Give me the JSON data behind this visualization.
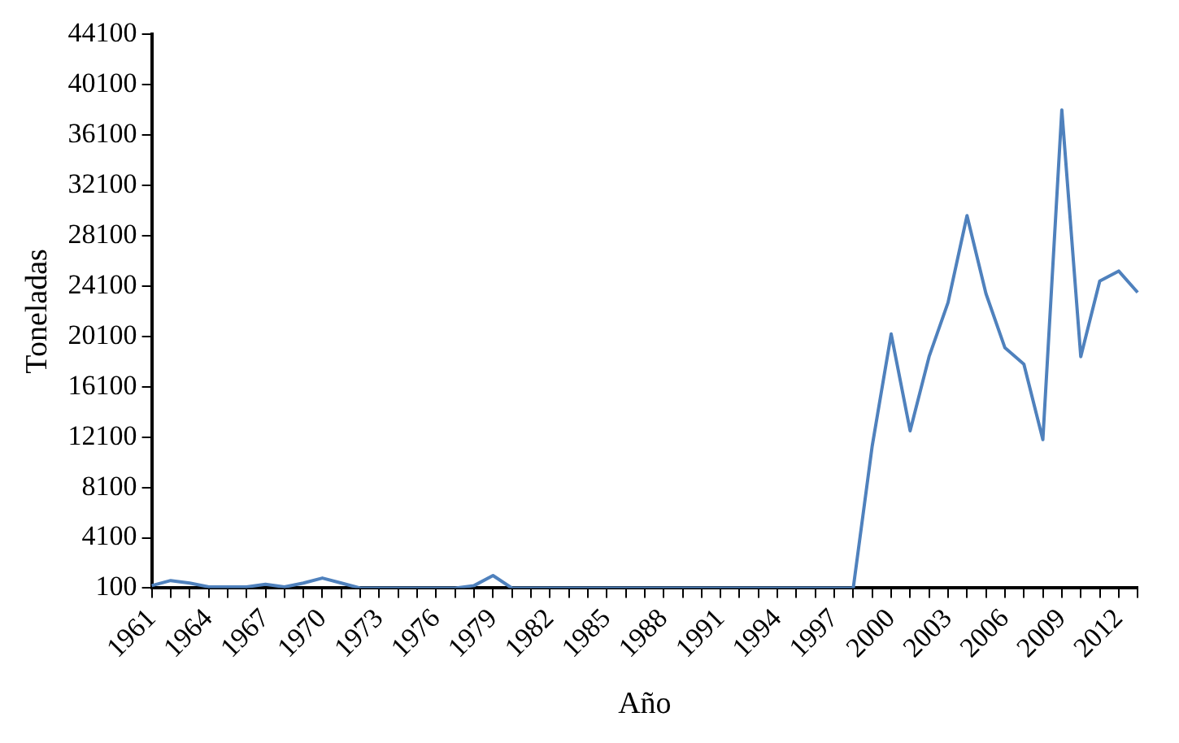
{
  "chart_data": {
    "type": "line",
    "xlabel": "Año",
    "ylabel": "Toneladas",
    "categories": [
      "1961",
      null,
      null,
      "1964",
      null,
      null,
      "1967",
      null,
      null,
      "1970",
      null,
      null,
      "1973",
      null,
      null,
      "1976",
      null,
      null,
      "1979",
      null,
      null,
      "1982",
      null,
      null,
      "1985",
      null,
      null,
      "1988",
      null,
      null,
      "1991",
      null,
      null,
      "1994",
      null,
      null,
      "1997",
      null,
      null,
      "2000",
      null,
      null,
      "2003",
      null,
      null,
      "2006",
      null,
      null,
      "2009",
      null,
      null,
      "2012",
      null
    ],
    "series": [
      {
        "color": "#4f81bd",
        "values": [
          300,
          700,
          500,
          200,
          200,
          200,
          400,
          200,
          500,
          900,
          500,
          100,
          100,
          100,
          100,
          100,
          100,
          300,
          1100,
          100,
          100,
          100,
          100,
          100,
          100,
          100,
          100,
          100,
          100,
          100,
          100,
          100,
          100,
          100,
          100,
          100,
          100,
          100,
          11400,
          20300,
          12600,
          18500,
          22800,
          29700,
          23500,
          19200,
          17900,
          11900,
          38100,
          18500,
          24500,
          25300,
          23600
        ]
      }
    ],
    "ylim": [
      100,
      44100
    ],
    "yticks": [
      100,
      4100,
      8100,
      12100,
      16100,
      20100,
      24100,
      28100,
      32100,
      36100,
      40100,
      44100
    ],
    "legend": false,
    "marker": "none",
    "line_style": "solid"
  }
}
